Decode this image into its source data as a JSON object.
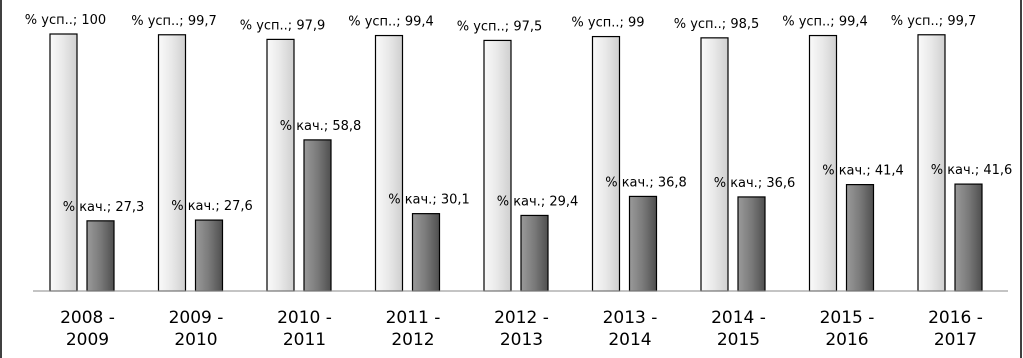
{
  "chart_data": {
    "type": "bar",
    "categories": [
      [
        "2008 -",
        "2009"
      ],
      [
        "2009 -",
        "2010"
      ],
      [
        "2010 -",
        "2011"
      ],
      [
        "2011 -",
        "2012"
      ],
      [
        "2012 -",
        "2013"
      ],
      [
        "2013 -",
        "2014"
      ],
      [
        "2014 -",
        "2015"
      ],
      [
        "2015 -",
        "2016"
      ],
      [
        "2016 -",
        "2017"
      ]
    ],
    "series": [
      {
        "name": "% усп..",
        "values": [
          100,
          99.7,
          97.9,
          99.4,
          97.5,
          99,
          98.5,
          99.4,
          99.7
        ],
        "labels": [
          "% усп..; 100",
          "% усп..; 99,7",
          "% усп..; 97,9",
          "% усп..; 99,4",
          "% усп..; 97,5",
          "% усп..; 99",
          "% усп..; 98,5",
          "% усп..; 99,4",
          "% усп..; 99,7"
        ],
        "color": "#e6e6e6"
      },
      {
        "name": "% кач.",
        "values": [
          27.3,
          27.6,
          58.8,
          30.1,
          29.4,
          36.8,
          36.6,
          41.4,
          41.6
        ],
        "labels": [
          "% кач.; 27,3",
          "% кач.; 27,6",
          "% кач.; 58,8",
          "% кач.; 30,1",
          "% кач.; 29,4",
          "% кач.; 36,8",
          "% кач.; 36,6",
          "% кач.; 41,4",
          "% кач.; 41,6"
        ],
        "color": "#7a7a7a"
      }
    ],
    "ylim": [
      0,
      100
    ],
    "grid": false,
    "legend": "none",
    "xlabel": "",
    "ylabel": "",
    "title": ""
  }
}
